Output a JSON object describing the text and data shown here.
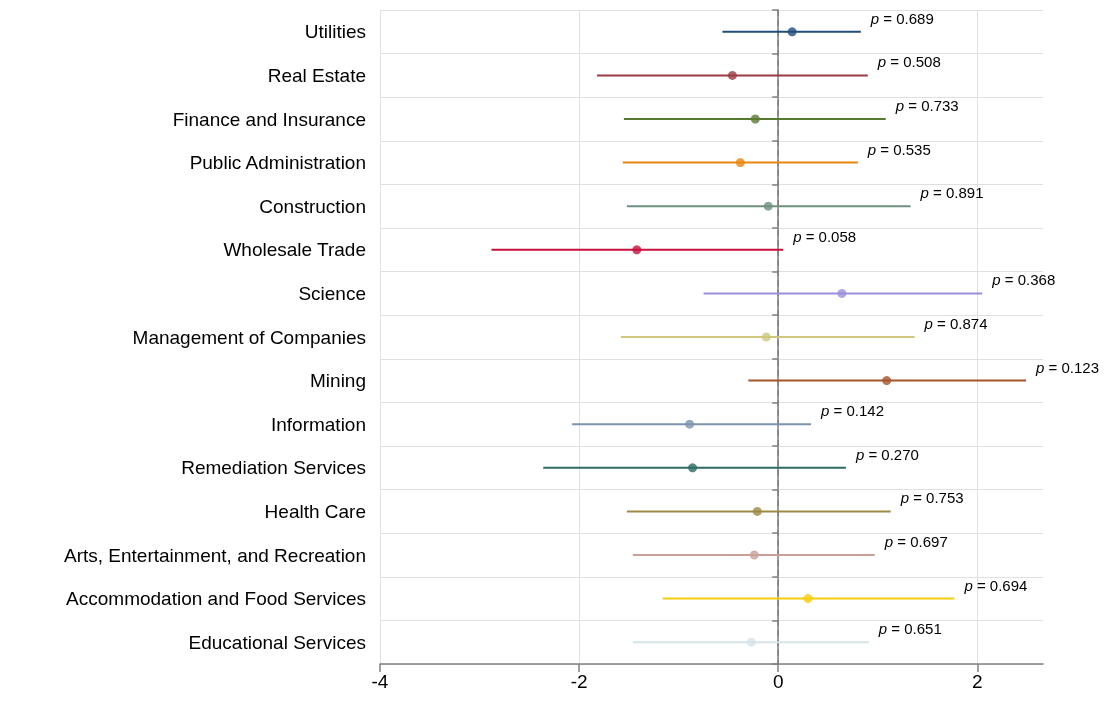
{
  "chart_data": {
    "type": "scatter",
    "orientation": "horizontal",
    "marker": "circle",
    "grid": true,
    "categories": [
      "Utilities",
      "Real Estate",
      "Finance and Insurance",
      "Public Administration",
      "Construction",
      "Wholesale Trade",
      "Science",
      "Management of Companies",
      "Mining",
      "Information",
      "Remediation Services",
      "Health Care",
      "Arts, Entertainment, and Recreation",
      "Accommodation and Food Services",
      "Educational Services"
    ],
    "values": [
      0.14,
      -0.46,
      -0.23,
      -0.38,
      -0.1,
      -1.42,
      0.64,
      -0.12,
      1.09,
      -0.89,
      -0.86,
      -0.21,
      -0.24,
      0.3,
      -0.27
    ],
    "errors": [
      [
        -0.56,
        0.83
      ],
      [
        -1.82,
        0.9
      ],
      [
        -1.55,
        1.08
      ],
      [
        -1.56,
        0.8
      ],
      [
        -1.52,
        1.33
      ],
      [
        -2.88,
        0.05
      ],
      [
        -0.75,
        2.05
      ],
      [
        -1.58,
        1.37
      ],
      [
        -0.3,
        2.49
      ],
      [
        -2.07,
        0.33
      ],
      [
        -2.36,
        0.68
      ],
      [
        -1.52,
        1.13
      ],
      [
        -1.46,
        0.97
      ],
      [
        -1.16,
        1.77
      ],
      [
        -1.46,
        0.91
      ]
    ],
    "colors": [
      "#1f4e79",
      "#9b3a45",
      "#587a2e",
      "#e8870e",
      "#6f8f80",
      "#c8103e",
      "#9a8fdc",
      "#cfc77e",
      "#a5542a",
      "#7d93ad",
      "#2c6b63",
      "#9c8a45",
      "#c9a09a",
      "#f6cd0a",
      "#d6e3ea"
    ],
    "annotations": [
      {
        "text": "p = 0.689",
        "x": 0.83,
        "y": "Utilities"
      },
      {
        "text": "p = 0.508",
        "x": 0.9,
        "y": "Real Estate"
      },
      {
        "text": "p = 0.733",
        "x": 1.08,
        "y": "Finance and Insurance"
      },
      {
        "text": "p = 0.535",
        "x": 0.8,
        "y": "Public Administration"
      },
      {
        "text": "p = 0.891",
        "x": 1.33,
        "y": "Construction"
      },
      {
        "text": "p = 0.058",
        "x": 0.05,
        "y": "Wholesale Trade"
      },
      {
        "text": "p = 0.368",
        "x": 2.05,
        "y": "Science"
      },
      {
        "text": "p = 0.874",
        "x": 1.37,
        "y": "Management of Companies"
      },
      {
        "text": "p = 0.123",
        "x": 2.49,
        "y": "Mining"
      },
      {
        "text": "p = 0.142",
        "x": 0.33,
        "y": "Information"
      },
      {
        "text": "p = 0.270",
        "x": 0.68,
        "y": "Remediation Services"
      },
      {
        "text": "p = 0.753",
        "x": 1.13,
        "y": "Health Care"
      },
      {
        "text": "p = 0.697",
        "x": 0.97,
        "y": "Arts, Entertainment, and Recreation"
      },
      {
        "text": "p = 0.694",
        "x": 1.77,
        "y": "Accommodation and Food Services"
      },
      {
        "text": "p = 0.651",
        "x": 0.91,
        "y": "Educational Services"
      }
    ],
    "xlim": [
      -4,
      2.66
    ],
    "xticks": [
      -4,
      -2,
      0,
      2
    ],
    "ref_lines": [
      {
        "axis": "x",
        "value": 0,
        "label": null,
        "color": "#808080",
        "line_style": "dashed"
      }
    ]
  }
}
